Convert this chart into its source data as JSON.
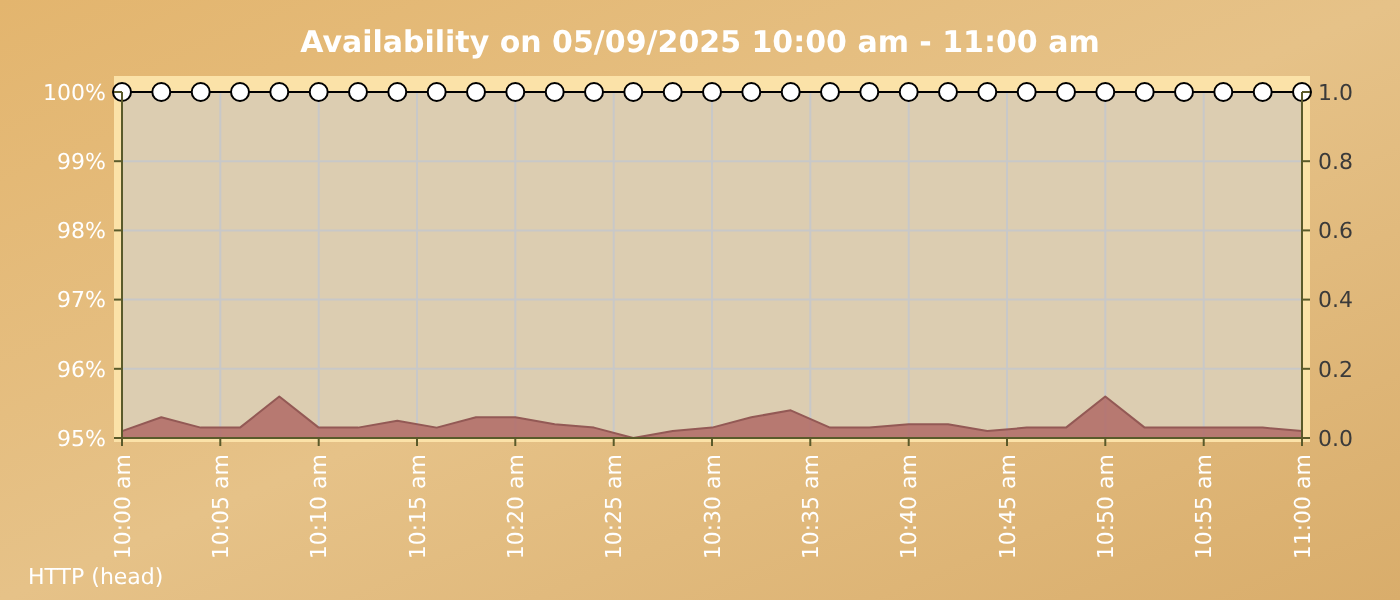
{
  "chart_data": {
    "type": "line",
    "title": "Availability on 05/09/2025 10:00 am - 11:00 am",
    "annotations": [
      "HTTP (head)"
    ],
    "x": [
      10,
      10.0333,
      10.0667,
      10.1,
      10.1333,
      10.1667,
      10.2,
      10.2333,
      10.2667,
      10.3,
      10.3333,
      10.3667,
      10.4,
      10.4333,
      10.4667,
      10.5,
      10.5333,
      10.5667,
      10.6,
      10.6333,
      10.6667,
      10.7,
      10.7333,
      10.7667,
      10.8,
      10.8333,
      10.8667,
      10.9,
      10.9333,
      10.9667,
      11
    ],
    "series": [
      {
        "type": "area",
        "axis": "y2",
        "color": "#b06a66",
        "values": [
          0.02,
          0.06,
          0.03,
          0.03,
          0.12,
          0.03,
          0.03,
          0.05,
          0.03,
          0.06,
          0.06,
          0.04,
          0.03,
          0.0,
          0.02,
          0.03,
          0.06,
          0.08,
          0.03,
          0.03,
          0.04,
          0.04,
          0.02,
          0.03,
          0.03,
          0.12,
          0.03,
          0.03,
          0.03,
          0.03,
          0.02
        ]
      },
      {
        "type": "line",
        "color": "#000000",
        "marker": "circle",
        "values": [
          100,
          100,
          100,
          100,
          100,
          100,
          100,
          100,
          100,
          100,
          100,
          100,
          100,
          100,
          100,
          100,
          100,
          100,
          100,
          100,
          100,
          100,
          100,
          100,
          100,
          100,
          100,
          100,
          100,
          100,
          100
        ]
      }
    ],
    "xlim": [
      10,
      11
    ],
    "xticks": [
      {
        "value": 10,
        "label": "10:00 am"
      },
      {
        "value": 10.0833,
        "label": "10:05 am"
      },
      {
        "value": 10.1667,
        "label": "10:10 am"
      },
      {
        "value": 10.25,
        "label": "10:15 am"
      },
      {
        "value": 10.3333,
        "label": "10:20 am"
      },
      {
        "value": 10.4167,
        "label": "10:25 am"
      },
      {
        "value": 10.5,
        "label": "10:30 am"
      },
      {
        "value": 10.5833,
        "label": "10:35 am"
      },
      {
        "value": 10.6667,
        "label": "10:40 am"
      },
      {
        "value": 10.75,
        "label": "10:45 am"
      },
      {
        "value": 10.8333,
        "label": "10:50 am"
      },
      {
        "value": 10.9167,
        "label": "10:55 am"
      },
      {
        "value": 11,
        "label": "11:00 am"
      }
    ],
    "ylim": [
      95,
      100
    ],
    "yticks": [
      {
        "value": 95,
        "label": "95%"
      },
      {
        "value": 96,
        "label": "96%"
      },
      {
        "value": 97,
        "label": "97%"
      },
      {
        "value": 98,
        "label": "98%"
      },
      {
        "value": 99,
        "label": "99%"
      },
      {
        "value": 100,
        "label": "100%"
      }
    ],
    "y2lim": [
      0,
      1
    ],
    "y2ticks": [
      {
        "value": 0,
        "label": "0.0"
      },
      {
        "value": 0.2,
        "label": "0.2"
      },
      {
        "value": 0.4,
        "label": "0.4"
      },
      {
        "value": 0.6,
        "label": "0.6"
      },
      {
        "value": 0.8,
        "label": "0.8"
      },
      {
        "value": 1,
        "label": "1.0"
      }
    ],
    "grid": true
  }
}
